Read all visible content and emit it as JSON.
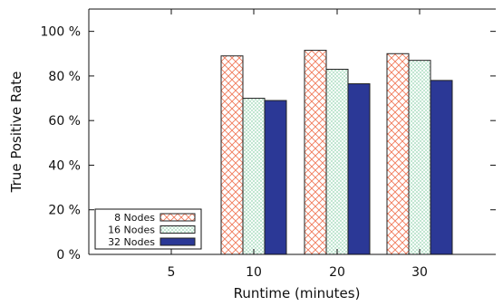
{
  "chart_data": {
    "type": "bar",
    "title": "",
    "xlabel": "Runtime (minutes)",
    "ylabel": "True Positive Rate",
    "categories": [
      "5",
      "10",
      "20",
      "30"
    ],
    "y_ticks": [
      "0 %",
      "20 %",
      "40 %",
      "60 %",
      "80 %",
      "100 %"
    ],
    "ylim": [
      0,
      110
    ],
    "series": [
      {
        "name": "8 Nodes",
        "values": [
          null,
          89,
          91.5,
          90
        ],
        "color": "#f07a5a",
        "fill": "crosshatch"
      },
      {
        "name": "16 Nodes",
        "values": [
          null,
          70,
          83,
          87
        ],
        "color": "#9fd8b8",
        "fill": "fine-crosshatch"
      },
      {
        "name": "32 Nodes",
        "values": [
          null,
          69,
          76.5,
          78
        ],
        "color": "#2b3896",
        "fill": "solid"
      }
    ],
    "legend_position": "bottom-left",
    "grid": false
  }
}
